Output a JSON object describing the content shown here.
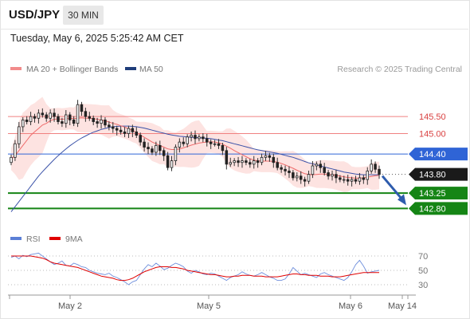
{
  "header": {
    "symbol": "USD/JPY",
    "interval": "30 MIN",
    "datetime": "Tuesday, May 6, 2025 5:25:42 AM CET"
  },
  "legend": {
    "ma20_label": "MA 20 + Bollinger Bands",
    "ma50_label": "MA 50",
    "ma20_color": "#f28b8b",
    "ma50_color": "#1f3d7a",
    "source": "Research © 2025 Trading Central"
  },
  "rsi_legend": {
    "rsi_label": "RSI",
    "ma_label": "9MA",
    "rsi_color": "#5b7fd6",
    "ma_color": "#e00000"
  },
  "chart_data": {
    "type": "candlestick",
    "title": "USD/JPY",
    "price_range": [
      142.55,
      146.3
    ],
    "levels": [
      {
        "value": 145.5,
        "label": "145.50",
        "kind": "resistance",
        "color": "#f08080"
      },
      {
        "value": 145.0,
        "label": "145.00",
        "kind": "resistance",
        "color": "#f08080"
      },
      {
        "value": 144.4,
        "label": "144.40",
        "kind": "pivot",
        "color": "#2f64d6"
      },
      {
        "value": 143.8,
        "label": "143.80",
        "kind": "last",
        "color": "#1a1a1a"
      },
      {
        "value": 143.25,
        "label": "143.25",
        "kind": "support",
        "color": "#158515"
      },
      {
        "value": 142.8,
        "label": "142.80",
        "kind": "support",
        "color": "#158515"
      }
    ],
    "x_ticks": [
      "May 2",
      "May 5",
      "May 6",
      "May 14"
    ],
    "closes": [
      144.3,
      144.7,
      145.2,
      145.4,
      145.35,
      145.5,
      145.45,
      145.6,
      145.55,
      145.45,
      145.6,
      145.5,
      145.35,
      145.3,
      145.55,
      145.4,
      145.3,
      145.85,
      145.65,
      145.5,
      145.45,
      145.35,
      145.3,
      145.4,
      145.25,
      145.2,
      145.15,
      145.1,
      145.05,
      145.0,
      145.15,
      145.05,
      144.95,
      144.75,
      144.6,
      144.55,
      144.45,
      144.65,
      144.5,
      144.35,
      144.0,
      144.2,
      144.6,
      144.75,
      144.7,
      144.9,
      144.95,
      144.85,
      144.9,
      144.85,
      144.75,
      144.7,
      144.7,
      144.65,
      144.5,
      144.1,
      144.15,
      144.2,
      144.15,
      144.2,
      144.15,
      144.1,
      144.2,
      144.15,
      144.3,
      144.35,
      144.3,
      144.15,
      144.0,
      143.95,
      143.9,
      143.85,
      143.7,
      143.75,
      143.65,
      143.6,
      143.8,
      144.05,
      144.1,
      144.0,
      143.85,
      143.75,
      143.8,
      143.7,
      143.65,
      143.65,
      143.6,
      143.65,
      143.6,
      143.7,
      143.65,
      143.9,
      144.1,
      143.95,
      143.8
    ],
    "ma20": [
      144.25,
      144.35,
      144.5,
      144.65,
      144.8,
      144.95,
      145.05,
      145.15,
      145.25,
      145.3,
      145.38,
      145.42,
      145.43,
      145.42,
      145.43,
      145.45,
      145.44,
      145.45,
      145.46,
      145.45,
      145.45,
      145.44,
      145.42,
      145.4,
      145.37,
      145.34,
      145.3,
      145.27,
      145.23,
      145.19,
      145.14,
      145.09,
      145.03,
      144.96,
      144.89,
      144.82,
      144.75,
      144.7,
      144.65,
      144.6,
      144.55,
      144.53,
      144.53,
      144.55,
      144.58,
      144.62,
      144.66,
      144.69,
      144.72,
      144.74,
      144.75,
      144.76,
      144.75,
      144.73,
      144.69,
      144.63,
      144.57,
      144.5,
      144.44,
      144.38,
      144.32,
      144.26,
      144.22,
      144.2,
      144.19,
      144.19,
      144.19,
      144.18,
      144.16,
      144.12,
      144.08,
      144.03,
      143.98,
      143.92,
      143.87,
      143.82,
      143.8,
      143.79,
      143.8,
      143.81,
      143.81,
      143.8,
      143.79,
      143.77,
      143.75,
      143.73,
      143.71,
      143.7,
      143.69,
      143.69,
      143.7,
      143.72,
      143.74,
      143.76,
      143.77
    ],
    "ma50": [
      142.7,
      142.85,
      143.0,
      143.15,
      143.3,
      143.45,
      143.6,
      143.75,
      143.88,
      144.0,
      144.12,
      144.24,
      144.35,
      144.45,
      144.55,
      144.64,
      144.72,
      144.8,
      144.87,
      144.93,
      144.99,
      145.04,
      145.08,
      145.12,
      145.15,
      145.18,
      145.2,
      145.21,
      145.22,
      145.22,
      145.22,
      145.21,
      145.2,
      145.18,
      145.16,
      145.13,
      145.1,
      145.07,
      145.04,
      145.01,
      144.98,
      144.96,
      144.94,
      144.92,
      144.91,
      144.9,
      144.89,
      144.89,
      144.88,
      144.87,
      144.86,
      144.85,
      144.83,
      144.81,
      144.79,
      144.76,
      144.73,
      144.7,
      144.67,
      144.64,
      144.61,
      144.58,
      144.55,
      144.52,
      144.5,
      144.48,
      144.46,
      144.44,
      144.42,
      144.39,
      144.36,
      144.33,
      144.3,
      144.26,
      144.22,
      144.18,
      144.14,
      144.11,
      144.08,
      144.05,
      144.02,
      143.99,
      143.96,
      143.93,
      143.9,
      143.87,
      143.85,
      143.83,
      143.81,
      143.8,
      143.79,
      143.79,
      143.79,
      143.79,
      143.79
    ],
    "projection": {
      "from": 143.8,
      "to": 142.8
    },
    "rsi": {
      "levels": [
        70,
        50,
        30
      ],
      "ylim": [
        20,
        80
      ],
      "rsi": [
        68,
        70,
        66,
        71,
        69,
        72,
        73,
        74,
        70,
        66,
        62,
        58,
        60,
        63,
        57,
        56,
        60,
        58,
        55,
        54,
        50,
        48,
        46,
        45,
        44,
        46,
        42,
        40,
        37,
        34,
        30,
        34,
        36,
        44,
        52,
        58,
        55,
        60,
        56,
        51,
        53,
        57,
        60,
        58,
        55,
        49,
        46,
        50,
        48,
        45,
        44,
        46,
        45,
        42,
        39,
        36,
        40,
        42,
        44,
        48,
        45,
        43,
        42,
        44,
        47,
        44,
        41,
        39,
        36,
        36,
        38,
        45,
        54,
        49,
        44,
        46,
        44,
        42,
        40,
        45,
        47,
        44,
        42,
        40,
        38,
        36,
        40,
        48,
        58,
        64,
        56,
        46,
        48,
        49,
        50
      ],
      "ma9": [
        70,
        70,
        70,
        70,
        70,
        70,
        69,
        68,
        67,
        65,
        62,
        60,
        59,
        58,
        57,
        56,
        55,
        54,
        52,
        50,
        48,
        46,
        44,
        42,
        41,
        40,
        39,
        37,
        36,
        36,
        37,
        39,
        42,
        45,
        48,
        50,
        52,
        54,
        55,
        55,
        55,
        54,
        54,
        53,
        52,
        50,
        49,
        48,
        47,
        46,
        45,
        44,
        44,
        43,
        42,
        41,
        41,
        42,
        42,
        43,
        43,
        43,
        42,
        42,
        42,
        41,
        41,
        41,
        41,
        42,
        43,
        44,
        45,
        45,
        44,
        44,
        43,
        43,
        43,
        42,
        42,
        42,
        41,
        41,
        41,
        42,
        43,
        44,
        45,
        46,
        47,
        47,
        47,
        47,
        47
      ]
    }
  }
}
